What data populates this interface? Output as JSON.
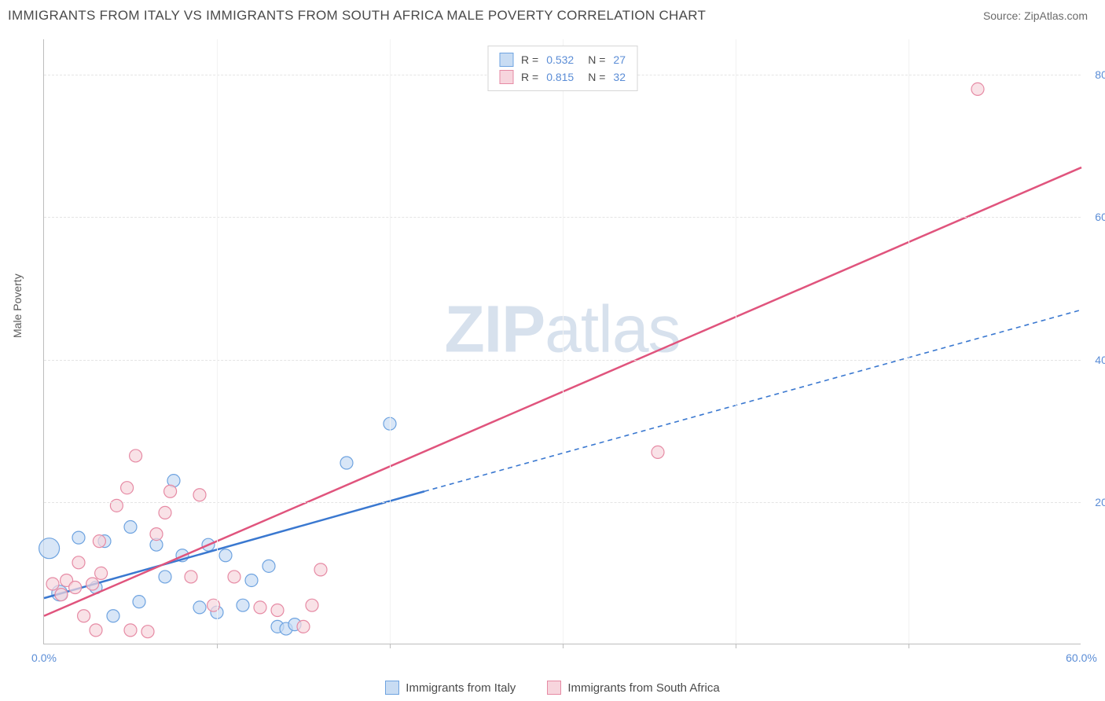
{
  "header": {
    "title": "IMMIGRANTS FROM ITALY VS IMMIGRANTS FROM SOUTH AFRICA MALE POVERTY CORRELATION CHART",
    "source": "Source: ZipAtlas.com"
  },
  "chart": {
    "type": "scatter",
    "ylabel": "Male Poverty",
    "watermark": {
      "bold": "ZIP",
      "rest": "atlas"
    },
    "xlim": [
      0,
      60
    ],
    "ylim": [
      0,
      85
    ],
    "xtick_major": [
      0,
      60
    ],
    "xtick_minor": [
      10,
      20,
      30,
      40,
      50
    ],
    "xtick_labels": [
      "0.0%",
      "60.0%"
    ],
    "ytick_major": [
      20,
      40,
      60,
      80
    ],
    "ytick_labels": [
      "20.0%",
      "40.0%",
      "60.0%",
      "80.0%"
    ],
    "grid_color": "#e4e4e4",
    "background_color": "#ffffff",
    "marker_radius": 8,
    "marker_radius_large": 13,
    "series": [
      {
        "name": "Immigrants from Italy",
        "fill": "#c8dcf3",
        "fill_opacity": 0.7,
        "stroke": "#6ea3e0",
        "line_color": "#3a78d0",
        "line_dash_ext": "6 5",
        "r_value": "0.532",
        "n_value": "27",
        "trend": {
          "x1": 0,
          "y1": 6.5,
          "x2": 22,
          "y2": 21.5,
          "ext_x2": 60,
          "ext_y2": 47
        },
        "points": [
          {
            "x": 0.3,
            "y": 13.5,
            "r": 13
          },
          {
            "x": 0.9,
            "y": 7.2,
            "r": 10
          },
          {
            "x": 2.0,
            "y": 15.0
          },
          {
            "x": 3.0,
            "y": 8.0
          },
          {
            "x": 3.5,
            "y": 14.5
          },
          {
            "x": 4.0,
            "y": 4.0
          },
          {
            "x": 5.0,
            "y": 16.5
          },
          {
            "x": 5.5,
            "y": 6.0
          },
          {
            "x": 6.5,
            "y": 14.0
          },
          {
            "x": 7.0,
            "y": 9.5
          },
          {
            "x": 7.5,
            "y": 23.0
          },
          {
            "x": 8.0,
            "y": 12.5
          },
          {
            "x": 9.0,
            "y": 5.2
          },
          {
            "x": 9.5,
            "y": 14.0
          },
          {
            "x": 10.0,
            "y": 4.5
          },
          {
            "x": 10.5,
            "y": 12.5
          },
          {
            "x": 11.5,
            "y": 5.5
          },
          {
            "x": 12.0,
            "y": 9.0
          },
          {
            "x": 13.0,
            "y": 11.0
          },
          {
            "x": 13.5,
            "y": 2.5
          },
          {
            "x": 14.0,
            "y": 2.2
          },
          {
            "x": 14.5,
            "y": 2.8
          },
          {
            "x": 17.5,
            "y": 25.5
          },
          {
            "x": 20.0,
            "y": 31.0
          }
        ]
      },
      {
        "name": "Immigrants from South Africa",
        "fill": "#f7d5dd",
        "fill_opacity": 0.7,
        "stroke": "#e68aa4",
        "line_color": "#e0547d",
        "line_dash_ext": "",
        "r_value": "0.815",
        "n_value": "32",
        "trend": {
          "x1": 0,
          "y1": 4.0,
          "x2": 60,
          "y2": 67.0
        },
        "points": [
          {
            "x": 0.5,
            "y": 8.5
          },
          {
            "x": 1.0,
            "y": 7.0
          },
          {
            "x": 1.3,
            "y": 9.0
          },
          {
            "x": 1.8,
            "y": 8.0
          },
          {
            "x": 2.0,
            "y": 11.5
          },
          {
            "x": 2.3,
            "y": 4.0
          },
          {
            "x": 2.8,
            "y": 8.5
          },
          {
            "x": 3.0,
            "y": 2.0
          },
          {
            "x": 3.2,
            "y": 14.5
          },
          {
            "x": 3.3,
            "y": 10.0
          },
          {
            "x": 4.2,
            "y": 19.5
          },
          {
            "x": 4.8,
            "y": 22.0
          },
          {
            "x": 5.0,
            "y": 2.0
          },
          {
            "x": 5.3,
            "y": 26.5
          },
          {
            "x": 6.0,
            "y": 1.8
          },
          {
            "x": 6.5,
            "y": 15.5
          },
          {
            "x": 7.0,
            "y": 18.5
          },
          {
            "x": 7.3,
            "y": 21.5
          },
          {
            "x": 8.5,
            "y": 9.5
          },
          {
            "x": 9.0,
            "y": 21.0
          },
          {
            "x": 9.8,
            "y": 5.5
          },
          {
            "x": 11.0,
            "y": 9.5
          },
          {
            "x": 12.5,
            "y": 5.2
          },
          {
            "x": 13.5,
            "y": 4.8
          },
          {
            "x": 15.0,
            "y": 2.5
          },
          {
            "x": 15.5,
            "y": 5.5
          },
          {
            "x": 16.0,
            "y": 10.5
          },
          {
            "x": 35.5,
            "y": 27.0
          },
          {
            "x": 54.0,
            "y": 78.0
          }
        ]
      }
    ],
    "legend_bottom": [
      {
        "label": "Immigrants from Italy",
        "fill": "#c8dcf3",
        "stroke": "#6ea3e0"
      },
      {
        "label": "Immigrants from South Africa",
        "fill": "#f7d5dd",
        "stroke": "#e68aa4"
      }
    ]
  }
}
